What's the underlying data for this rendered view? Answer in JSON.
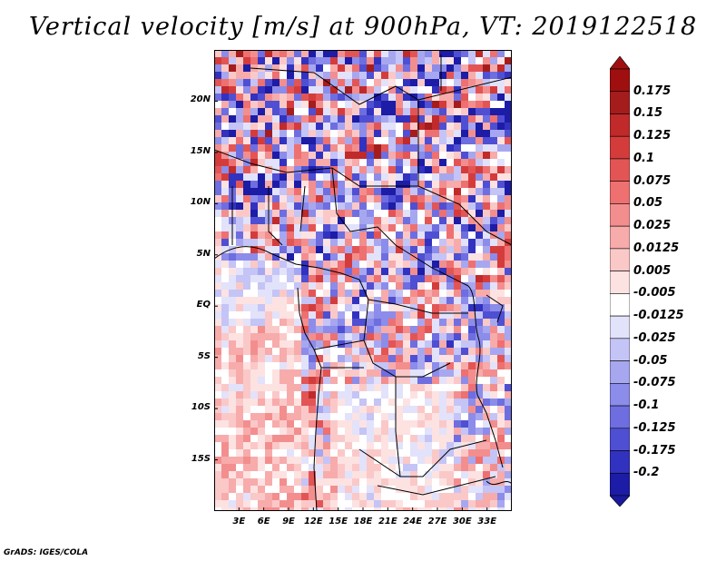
{
  "title": "Vertical velocity [m/s] at 900hPa, VT: 2019122518",
  "credit": "GrADS: IGES/COLA",
  "map": {
    "lat_range": [
      -20,
      25
    ],
    "lon_range": [
      0,
      36
    ],
    "lat_ticks": [
      {
        "value": 20,
        "label": "20N"
      },
      {
        "value": 15,
        "label": "15N"
      },
      {
        "value": 10,
        "label": "10N"
      },
      {
        "value": 5,
        "label": "5N"
      },
      {
        "value": 0,
        "label": "EQ"
      },
      {
        "value": -5,
        "label": "5S"
      },
      {
        "value": -10,
        "label": "10S"
      },
      {
        "value": -15,
        "label": "15S"
      }
    ],
    "lon_ticks": [
      {
        "value": 3,
        "label": "3E"
      },
      {
        "value": 6,
        "label": "6E"
      },
      {
        "value": 9,
        "label": "9E"
      },
      {
        "value": 12,
        "label": "12E"
      },
      {
        "value": 15,
        "label": "15E"
      },
      {
        "value": 18,
        "label": "18E"
      },
      {
        "value": 21,
        "label": "21E"
      },
      {
        "value": 24,
        "label": "24E"
      },
      {
        "value": 27,
        "label": "27E"
      },
      {
        "value": 30,
        "label": "30E"
      },
      {
        "value": 33,
        "label": "33E"
      }
    ]
  },
  "colorbar": {
    "levels": [
      {
        "label": "0.175",
        "color": "#a51c1c"
      },
      {
        "label": "0.15",
        "color": "#c02a2a"
      },
      {
        "label": "0.125",
        "color": "#d43c3c"
      },
      {
        "label": "0.1",
        "color": "#e35555"
      },
      {
        "label": "0.075",
        "color": "#ee7070"
      },
      {
        "label": "0.05",
        "color": "#f38e8e"
      },
      {
        "label": "0.025",
        "color": "#f7abab"
      },
      {
        "label": "0.0125",
        "color": "#fbc8c8"
      },
      {
        "label": "0.005",
        "color": "#fde2e2"
      },
      {
        "label": "-0.005",
        "color": "#ffffff"
      },
      {
        "label": "-0.0125",
        "color": "#e2e2fb"
      },
      {
        "label": "-0.025",
        "color": "#c4c4f6"
      },
      {
        "label": "-0.05",
        "color": "#a7a7f0"
      },
      {
        "label": "-0.075",
        "color": "#8c8cea"
      },
      {
        "label": "-0.1",
        "color": "#6e6ee0"
      },
      {
        "label": "-0.125",
        "color": "#4f4fd3"
      },
      {
        "label": "-0.175",
        "color": "#3232c0"
      },
      {
        "label": "-0.2",
        "color": "#1c1ca6"
      }
    ],
    "top_color": "#a00f0f",
    "bottom_color": "#1a1a9e"
  }
}
